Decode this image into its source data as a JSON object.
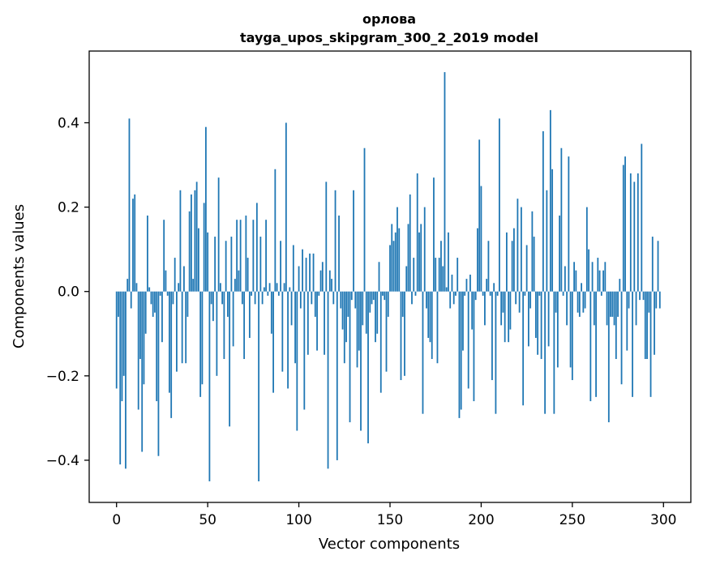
{
  "chart_data": {
    "type": "bar",
    "title": "орлова",
    "subtitle": "tayga_upos_skipgram_300_2_2019 model",
    "xlabel": "Vector components",
    "ylabel": "Components values",
    "xlim": [
      -15,
      315
    ],
    "ylim": [
      -0.5,
      0.57
    ],
    "x_ticks": [
      0,
      50,
      100,
      150,
      200,
      250,
      300
    ],
    "x_tick_labels": [
      "0",
      "50",
      "100",
      "150",
      "200",
      "250",
      "300"
    ],
    "y_ticks": [
      -0.4,
      -0.2,
      0.0,
      0.2,
      0.4
    ],
    "y_tick_labels": [
      "−0.4",
      "−0.2",
      "0.0",
      "0.2",
      "0.4"
    ],
    "grid": false,
    "bar_color": "#1f77b4",
    "series": [
      {
        "values": [
          -0.23,
          -0.06,
          -0.41,
          -0.26,
          -0.2,
          -0.42,
          0.03,
          0.41,
          -0.04,
          0.22,
          0.23,
          0.02,
          -0.28,
          -0.16,
          -0.38,
          -0.22,
          -0.1,
          0.18,
          0.01,
          -0.03,
          -0.06,
          -0.05,
          -0.26,
          -0.39,
          -0.01,
          -0.12,
          0.17,
          0.05,
          -0.01,
          -0.24,
          -0.3,
          -0.03,
          0.08,
          -0.19,
          0.02,
          0.24,
          -0.17,
          0.06,
          -0.17,
          -0.06,
          0.19,
          0.23,
          0.03,
          0.24,
          0.26,
          0.15,
          -0.25,
          -0.22,
          0.21,
          0.39,
          0.14,
          -0.45,
          -0.03,
          -0.07,
          0.13,
          -0.2,
          0.27,
          0.02,
          -0.03,
          -0.16,
          0.12,
          -0.06,
          -0.32,
          0.13,
          -0.13,
          0.03,
          0.17,
          0.05,
          0.17,
          -0.03,
          -0.16,
          0.18,
          0.08,
          -0.11,
          -0.01,
          0.17,
          -0.03,
          0.21,
          -0.45,
          0.13,
          -0.03,
          0.01,
          0.17,
          -0.01,
          0.02,
          -0.1,
          -0.24,
          0.29,
          0.02,
          -0.01,
          0.12,
          -0.19,
          0.02,
          0.4,
          -0.23,
          0.01,
          -0.08,
          0.11,
          -0.17,
          -0.33,
          0.06,
          -0.04,
          0.1,
          -0.28,
          0.08,
          -0.15,
          0.09,
          -0.03,
          0.09,
          -0.06,
          -0.14,
          -0.01,
          0.05,
          0.07,
          -0.15,
          0.26,
          -0.42,
          0.05,
          0.03,
          -0.03,
          0.24,
          -0.4,
          0.18,
          -0.04,
          -0.09,
          -0.17,
          -0.12,
          -0.06,
          -0.31,
          -0.02,
          0.24,
          -0.04,
          -0.18,
          -0.14,
          -0.33,
          -0.08,
          0.34,
          -0.1,
          -0.36,
          -0.05,
          -0.03,
          -0.02,
          -0.12,
          -0.1,
          0.07,
          -0.24,
          -0.01,
          -0.02,
          -0.19,
          -0.06,
          0.11,
          0.16,
          0.12,
          0.14,
          0.2,
          0.15,
          -0.21,
          -0.06,
          -0.2,
          0.06,
          0.16,
          0.23,
          -0.03,
          0.08,
          -0.01,
          0.28,
          0.14,
          0.16,
          -0.29,
          0.2,
          -0.04,
          -0.11,
          -0.12,
          -0.16,
          0.27,
          0.08,
          -0.17,
          0.08,
          0.12,
          0.06,
          0.52,
          0.01,
          0.14,
          -0.04,
          0.04,
          -0.03,
          -0.01,
          0.08,
          -0.3,
          -0.28,
          -0.14,
          -0.01,
          0.03,
          -0.23,
          0.04,
          -0.09,
          -0.26,
          -0.02,
          0.15,
          0.36,
          0.25,
          -0.01,
          -0.08,
          0.03,
          0.12,
          -0.01,
          -0.21,
          0.02,
          -0.29,
          -0.01,
          0.41,
          -0.08,
          -0.05,
          -0.12,
          0.14,
          -0.12,
          -0.09,
          0.12,
          0.15,
          -0.03,
          0.22,
          -0.05,
          0.2,
          -0.27,
          -0.01,
          0.11,
          -0.13,
          -0.04,
          0.19,
          0.13,
          -0.11,
          -0.15,
          -0.01,
          -0.16,
          0.38,
          -0.29,
          0.24,
          -0.13,
          0.43,
          0.29,
          -0.29,
          -0.05,
          -0.18,
          0.18,
          0.34,
          -0.01,
          0.06,
          -0.08,
          0.32,
          -0.18,
          -0.21,
          0.07,
          0.05,
          -0.05,
          -0.06,
          0.02,
          -0.05,
          -0.04,
          0.2,
          0.1,
          -0.26,
          0.07,
          -0.08,
          -0.25,
          0.08,
          0.05,
          -0.01,
          0.05,
          0.07,
          -0.08,
          -0.31,
          -0.06,
          -0.06,
          -0.08,
          -0.16,
          -0.06,
          0.03,
          -0.22,
          0.3,
          0.32,
          -0.14,
          -0.04,
          0.28,
          -0.25,
          0.26,
          -0.08,
          0.28,
          -0.02,
          0.35,
          -0.02,
          -0.16,
          -0.16,
          -0.05,
          -0.25,
          0.13,
          -0.15,
          -0.04,
          0.12,
          -0.04
        ]
      }
    ]
  }
}
